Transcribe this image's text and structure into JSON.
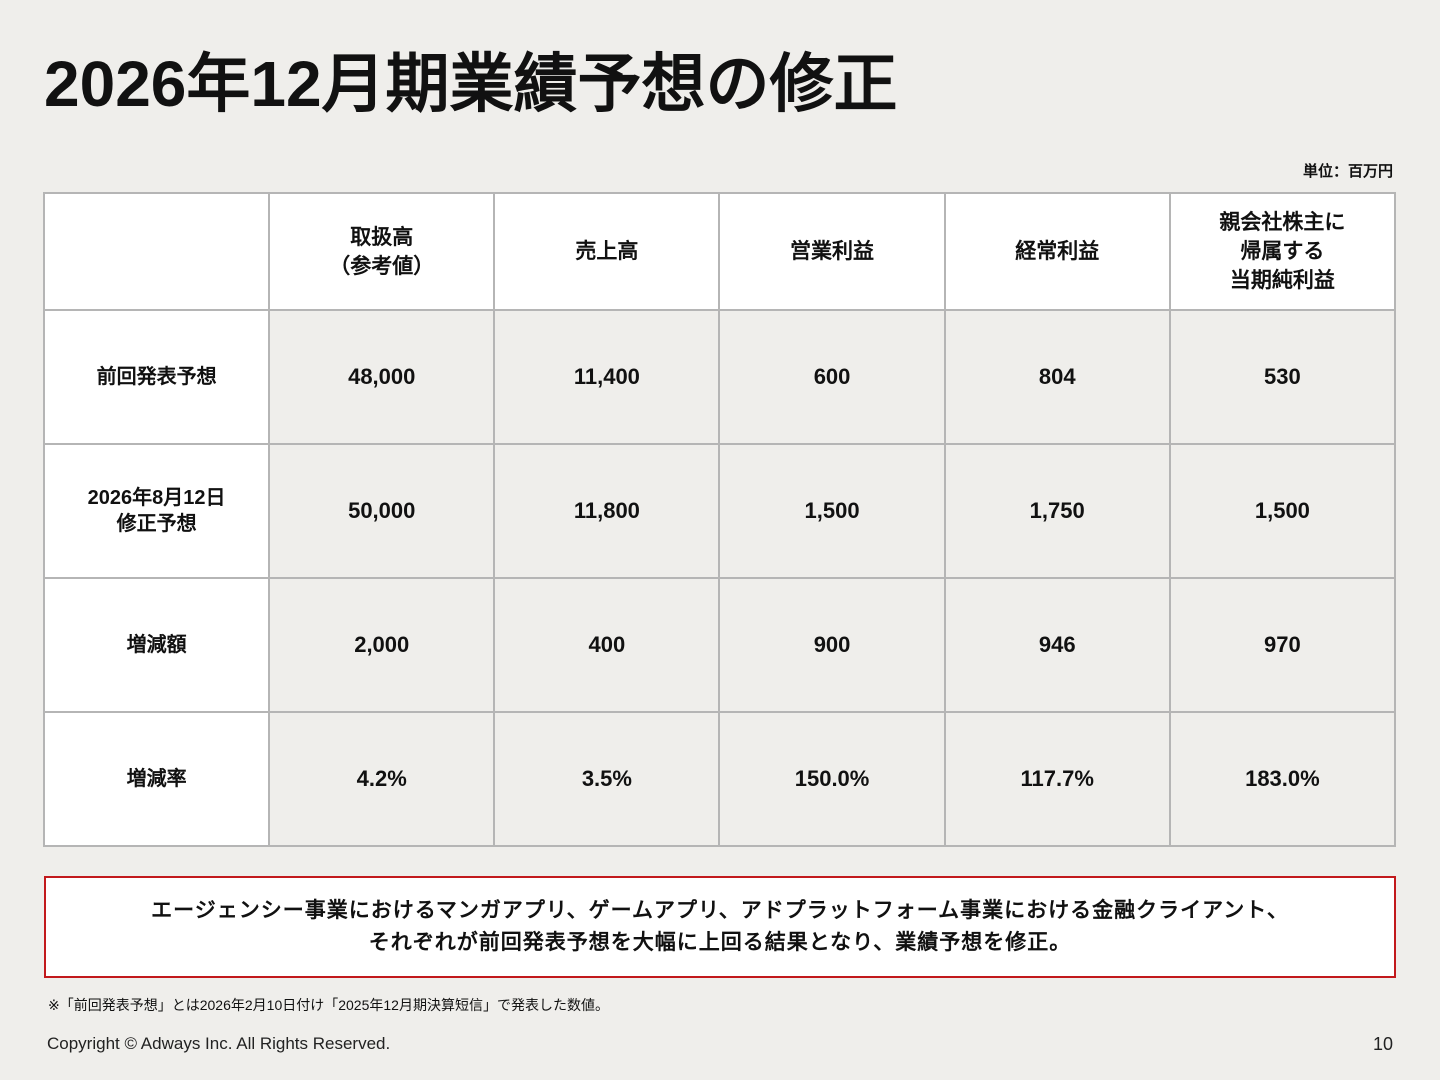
{
  "title": "2026年12月期業績予想の修正",
  "unit_label": "単位：百万円",
  "table": {
    "columns": [
      "",
      "取扱高\n（参考値）",
      "売上高",
      "営業利益",
      "経常利益",
      "親会社株主に\n帰属する\n当期純利益"
    ],
    "rows": [
      {
        "label": "前回発表予想",
        "values": [
          "48,000",
          "11,400",
          "600",
          "804",
          "530"
        ]
      },
      {
        "label": "2026年8月12日\n修正予想",
        "values": [
          "50,000",
          "11,800",
          "1,500",
          "1,750",
          "1,500"
        ]
      },
      {
        "label": "増減額",
        "values": [
          "2,000",
          "400",
          "900",
          "946",
          "970"
        ]
      },
      {
        "label": "増減率",
        "values": [
          "4.2%",
          "3.5%",
          "150.0%",
          "117.7%",
          "183.0%"
        ]
      }
    ]
  },
  "notice": "エージェンシー事業におけるマンガアプリ、ゲームアプリ、アドプラットフォーム事業における金融クライアント、\nそれぞれが前回発表予想を大幅に上回る結果となり、業績予想を修正。",
  "footnote": "※「前回発表予想」とは2026年2月10日付け「2025年12月期決算短信」で発表した数値。",
  "copyright": "Copyright © Adways Inc. All Rights Reserved.",
  "page_number": "10",
  "colors": {
    "background": "#efeeeb",
    "notice_border": "#c2191c",
    "table_border": "#b5b5b5"
  }
}
